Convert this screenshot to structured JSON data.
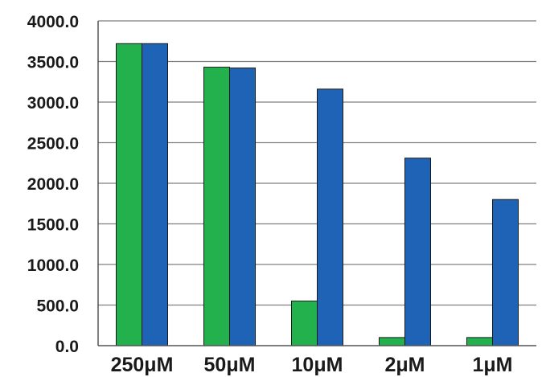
{
  "chart_data": {
    "type": "bar",
    "categories": [
      "250μM",
      "50μM",
      "10μM",
      "2μM",
      "1μM"
    ],
    "series": [
      {
        "values": [
          3720,
          3430,
          550,
          100,
          100
        ],
        "color": "#22b14c"
      },
      {
        "values": [
          3720,
          3420,
          3160,
          2310,
          1800
        ],
        "color": "#1e63b5"
      }
    ],
    "yticks": [
      "0.0",
      "500.0",
      "1000.0",
      "1500.0",
      "2000.0",
      "2500.0",
      "3000.0",
      "3500.0",
      "4000.0"
    ],
    "ylim": [
      0,
      4000
    ],
    "grid": true,
    "legend": "none"
  }
}
